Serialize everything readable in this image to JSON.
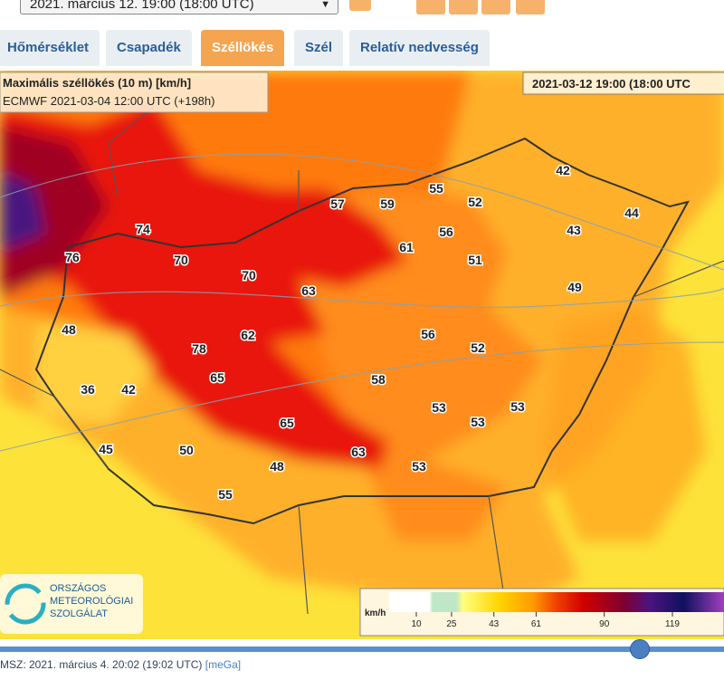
{
  "header": {
    "time_select": "2021. március 12. 19:00 (18:00  UTC)"
  },
  "tabs": [
    "Hőmérséklet",
    "Csapadék",
    "Széllökés",
    "Szél",
    "Relatív nedvesség"
  ],
  "map": {
    "title": "Maximális széllökés (10 m) [km/h]",
    "model_run": "ECMWF 2021-03-04 12:00 UTC (+198h)",
    "valid_time": "2021-03-12 19:00 (18:00 UTC",
    "station_values": [
      42,
      55,
      52,
      57,
      59,
      44,
      74,
      43,
      56,
      61,
      76,
      70,
      51,
      70,
      49,
      63,
      48,
      62,
      56,
      78,
      52,
      65,
      58,
      36,
      42,
      53,
      53,
      53,
      65,
      45,
      50,
      63,
      48,
      53,
      55
    ],
    "legend": {
      "unit": "km/h",
      "ticks": [
        10,
        25,
        43,
        61,
        90,
        119
      ]
    }
  },
  "logo": {
    "lines": [
      "ORSZÁGOS",
      "METEOROLÓGIAI",
      "SZOLGÁLAT"
    ]
  },
  "footer": {
    "issued": "MSZ: 2021. március 4. 20:02 (19:02 UTC)",
    "source": "[meGa]"
  }
}
